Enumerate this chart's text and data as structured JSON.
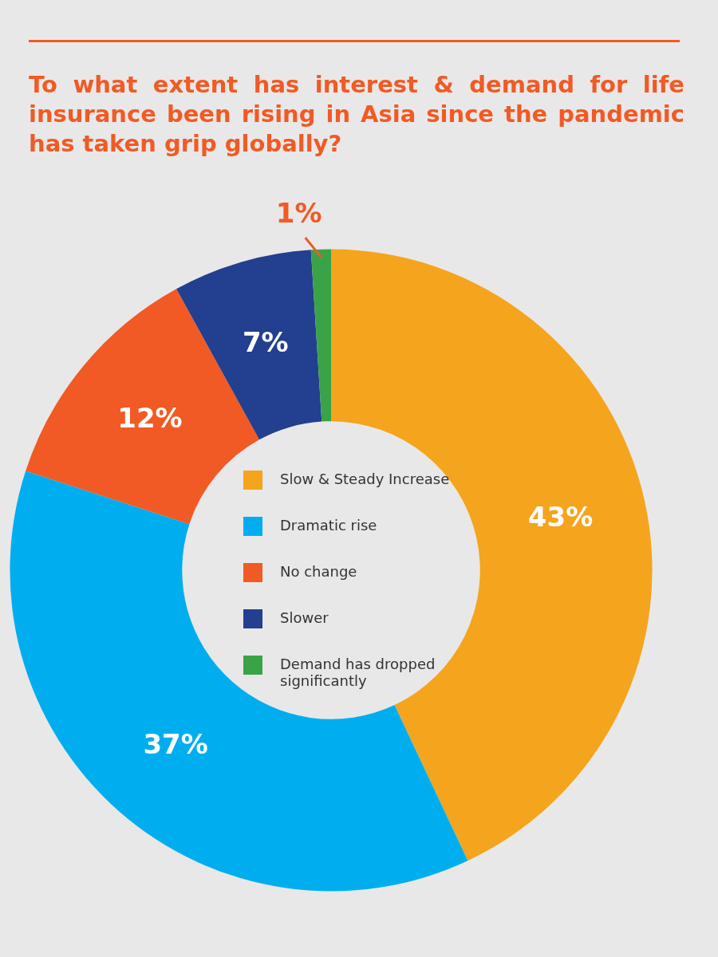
{
  "chart_data": {
    "type": "donut",
    "title": "To what extent has interest & demand for life insurance been rising in Asia since the pandemic has taken grip globally?",
    "categories": [
      "Slow & Steady Increase",
      "Dramatic rise",
      "No change",
      "Slower",
      "Demand has dropped significantly"
    ],
    "values": [
      43,
      37,
      12,
      7,
      1
    ],
    "colors": [
      "#f5a41d",
      "#00aeef",
      "#f15a24",
      "#233f8f",
      "#3aa348"
    ],
    "value_labels": [
      "43%",
      "37%",
      "12%",
      "7%",
      "1%"
    ],
    "legend": "center"
  }
}
